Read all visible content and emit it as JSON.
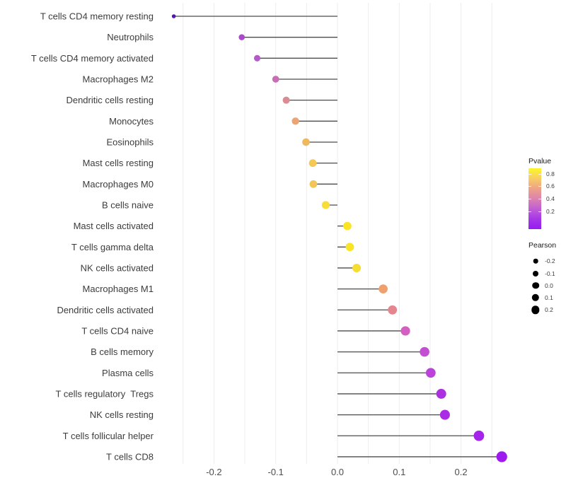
{
  "figure": {
    "background": "#ffffff",
    "stem_color": "#4c4c4c",
    "grid_color": "#ededed",
    "axis_text_color": "#4d4d4d",
    "label_text_color": "#3c3c3c"
  },
  "chart_data": {
    "type": "scatter",
    "subtype": "lollipop",
    "title": "",
    "xlabel": "",
    "ylabel": "",
    "x_tick_values": [
      -0.2,
      -0.1,
      0.0,
      0.1,
      0.2
    ],
    "x_tick_labels": [
      "-0.2",
      "-0.1",
      "0.0",
      "0.1",
      "0.2"
    ],
    "xlim": [
      -0.29,
      0.29
    ],
    "grid": "vertical gridlines every 0.05, no horizontal gridlines",
    "encoding": "stem from 0 to Pearson value; dot color = Pvalue (plasma gradient), dot size = Pearson",
    "points": [
      {
        "label": "T cells CD4 memory resting",
        "pearson": -0.265,
        "color": "#5415b5"
      },
      {
        "label": "Neutrophils",
        "pearson": -0.155,
        "color": "#aa4ac8"
      },
      {
        "label": "T cells CD4 memory activated",
        "pearson": -0.13,
        "color": "#b558c9"
      },
      {
        "label": "Macrophages M2",
        "pearson": -0.1,
        "color": "#ca6db3"
      },
      {
        "label": "Dendritic cells resting",
        "pearson": -0.083,
        "color": "#db8b94"
      },
      {
        "label": "Monocytes",
        "pearson": -0.068,
        "color": "#eba473"
      },
      {
        "label": "Eosinophils",
        "pearson": -0.051,
        "color": "#eeb95e"
      },
      {
        "label": "Mast cells resting",
        "pearson": -0.04,
        "color": "#f3c853"
      },
      {
        "label": "Macrophages M0",
        "pearson": -0.039,
        "color": "#f2c557"
      },
      {
        "label": "B cells naive",
        "pearson": -0.019,
        "color": "#f7dd36"
      },
      {
        "label": "Mast cells activated",
        "pearson": 0.016,
        "color": "#f9e426"
      },
      {
        "label": "T cells gamma delta",
        "pearson": 0.02,
        "color": "#f9e426"
      },
      {
        "label": "NK cells activated",
        "pearson": 0.031,
        "color": "#f6dd31"
      },
      {
        "label": "Macrophages M1",
        "pearson": 0.074,
        "color": "#f0a06c"
      },
      {
        "label": "Dendritic cells activated",
        "pearson": 0.089,
        "color": "#e5858d"
      },
      {
        "label": "T cells CD4 naive",
        "pearson": 0.11,
        "color": "#d35fc0"
      },
      {
        "label": "B cells memory",
        "pearson": 0.141,
        "color": "#c24ed2"
      },
      {
        "label": "Plasma cells",
        "pearson": 0.151,
        "color": "#bb43d9"
      },
      {
        "label": "T cells regulatory  Tregs",
        "pearson": 0.168,
        "color": "#ad30e0"
      },
      {
        "label": "NK cells resting",
        "pearson": 0.174,
        "color": "#aa2ce4"
      },
      {
        "label": "T cells follicular helper",
        "pearson": 0.229,
        "color": "#a524ec"
      },
      {
        "label": "T cells CD8",
        "pearson": 0.266,
        "color": "#9d1bef"
      }
    ]
  },
  "legend_pvalue": {
    "title": "Pvalue",
    "tick_labels": [
      "0.8",
      "0.6",
      "0.4",
      "0.2"
    ],
    "gradient_top_to_bottom": [
      "#fdf62a",
      "#f7cd63",
      "#eea287",
      "#dd82ae",
      "#c05ed4",
      "#a637e8",
      "#981af2"
    ]
  },
  "legend_pearson": {
    "title": "Pearson",
    "dot_color": "#000000",
    "entries": [
      {
        "label": "-0.2",
        "radius": 3.3
      },
      {
        "label": "-0.1",
        "radius": 4.0
      },
      {
        "label": "0.0",
        "radius": 4.8
      },
      {
        "label": "0.1",
        "radius": 5.2
      },
      {
        "label": "0.2",
        "radius": 5.7
      }
    ]
  }
}
